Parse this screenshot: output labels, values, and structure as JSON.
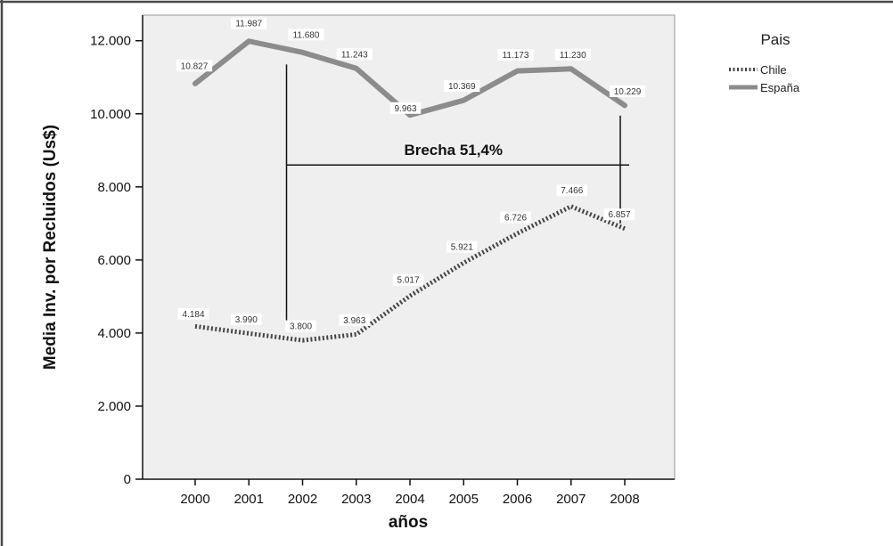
{
  "chart_data": {
    "type": "line",
    "title": "",
    "xlabel": "años",
    "ylabel": "Media Inv. por Recluidos (Us$)",
    "categories": [
      "2000",
      "2001",
      "2002",
      "2003",
      "2004",
      "2005",
      "2006",
      "2007",
      "2008"
    ],
    "ylim": [
      0,
      12700
    ],
    "yticks": [
      0,
      2000,
      4000,
      6000,
      8000,
      10000,
      12000
    ],
    "ytick_labels": [
      "0",
      "2.000",
      "4.000",
      "6.000",
      "8.000",
      "10.000",
      "12.000"
    ],
    "grid": false,
    "legend": {
      "title": "Pais",
      "placement": "outside-top-right"
    },
    "series": [
      {
        "name": "Chile",
        "style": "dotted",
        "color": "#444444",
        "values": [
          4184,
          3990,
          3800,
          3963,
          5017,
          5921,
          6726,
          7466,
          6857
        ],
        "labels": [
          "4.184",
          "3.990",
          "3.800",
          "3.963",
          "5.017",
          "5.921",
          "6.726",
          "7.466",
          "6.857"
        ]
      },
      {
        "name": "España",
        "style": "solid",
        "color": "#8c8c8c",
        "values": [
          10827,
          11987,
          11680,
          11243,
          9963,
          10369,
          11173,
          11230,
          10229
        ],
        "labels": [
          "10.827",
          "11.987",
          "11.680",
          "11.243",
          "9.963",
          "10.369",
          "11.173",
          "11.230",
          "10.229"
        ]
      }
    ],
    "annotations": [
      {
        "text": "Brecha 51,4%",
        "type": "gap-bracket",
        "left_x": "2002",
        "left_range": [
          4200,
          11350
        ],
        "right_x": "2008",
        "right_range": [
          7000,
          9950
        ],
        "connector_y": 8600
      }
    ],
    "colors": {
      "plot_background": "#efefef",
      "page_background": "#ffffff"
    }
  }
}
